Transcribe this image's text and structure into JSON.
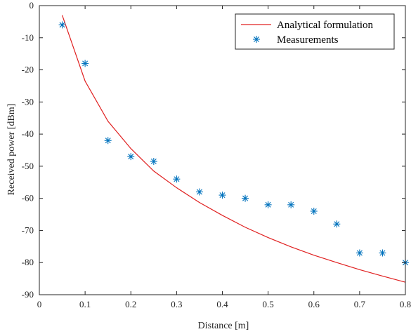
{
  "chart_data": {
    "type": "line",
    "title": "",
    "xlabel": "Distance [m]",
    "ylabel": "Received power [dBm]",
    "xlim": [
      0,
      0.8
    ],
    "ylim": [
      -90,
      0
    ],
    "xticks": [
      0,
      0.1,
      0.2,
      0.3,
      0.4,
      0.5,
      0.6,
      0.7,
      0.8
    ],
    "xtick_labels": [
      "0",
      "0.1",
      "0.2",
      "0.3",
      "0.4",
      "0.5",
      "0.6",
      "0.7",
      "0.8"
    ],
    "yticks": [
      0,
      -10,
      -20,
      -30,
      -40,
      -50,
      -60,
      -70,
      -80,
      -90
    ],
    "ytick_labels": [
      "0",
      "-10",
      "-20",
      "-30",
      "-40",
      "-50",
      "-60",
      "-70",
      "-80",
      "-90"
    ],
    "grid": false,
    "legend_position": "top-right",
    "series": [
      {
        "name": "Analytical formulation",
        "type": "line",
        "color": "#e02020",
        "x": [
          0.05,
          0.1,
          0.15,
          0.2,
          0.25,
          0.3,
          0.35,
          0.4,
          0.45,
          0.5,
          0.55,
          0.6,
          0.65,
          0.7,
          0.75,
          0.8
        ],
        "y": [
          -3.0,
          -23.5,
          -36.0,
          -44.5,
          -51.5,
          -56.7,
          -61.3,
          -65.3,
          -69.0,
          -72.2,
          -75.1,
          -77.7,
          -80.0,
          -82.2,
          -84.2,
          -86.1
        ]
      },
      {
        "name": "Measurements",
        "type": "scatter",
        "marker": "asterisk",
        "color": "#0072bd",
        "x": [
          0.05,
          0.1,
          0.15,
          0.2,
          0.25,
          0.3,
          0.35,
          0.4,
          0.45,
          0.5,
          0.55,
          0.6,
          0.65,
          0.7,
          0.75,
          0.8
        ],
        "y": [
          -6,
          -18,
          -42,
          -47,
          -48.5,
          -54,
          -58,
          -59,
          -60,
          -62,
          -62,
          -64,
          -68,
          -77,
          -77,
          -80
        ]
      }
    ]
  }
}
